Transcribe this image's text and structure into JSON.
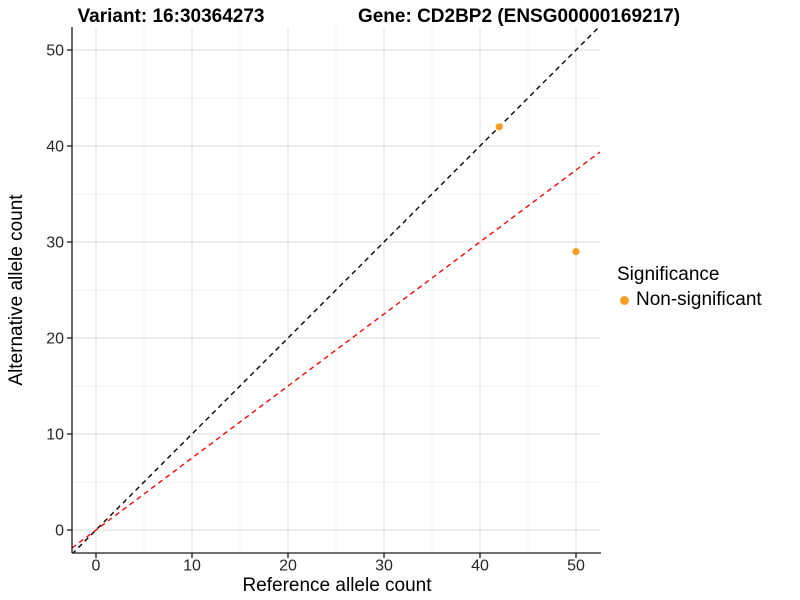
{
  "chart_data": {
    "type": "scatter",
    "titles": {
      "left": "Variant: 16:30364273",
      "right": "Gene: CD2BP2 (ENSG00000169217)"
    },
    "xlabel": "Reference allele count",
    "ylabel": "Alternative allele count",
    "x_ticks": [
      0,
      10,
      20,
      30,
      40,
      50
    ],
    "y_ticks": [
      0,
      10,
      20,
      30,
      40,
      50
    ],
    "xlim": [
      -2.5,
      52.5
    ],
    "ylim": [
      -2.5,
      52.5
    ],
    "grid": {
      "major": true,
      "minor": true,
      "legend_position": "right"
    },
    "points": [
      {
        "x": 42,
        "y": 42,
        "series": "Non-significant"
      },
      {
        "x": 50,
        "y": 29,
        "series": "Non-significant"
      }
    ],
    "ablines": [
      {
        "name": "identity-line",
        "slope": 1,
        "intercept": 0,
        "color": "#000000",
        "dashed": true
      },
      {
        "name": "allelic-ratio-line",
        "slope": 0.75,
        "intercept": 0,
        "color": "#FF0000",
        "dashed": true
      }
    ],
    "colors": {
      "point": "#FB9E26",
      "major_grid": "#E4E4E4",
      "minor_grid": "#F1F1F1",
      "axis": "#1A1A1A",
      "tick_text": "#262626",
      "background": "#FFFFFF"
    },
    "legend": {
      "title": "Significance",
      "items": [
        {
          "label": "Non-significant",
          "color": "#FB9E26"
        }
      ]
    }
  }
}
